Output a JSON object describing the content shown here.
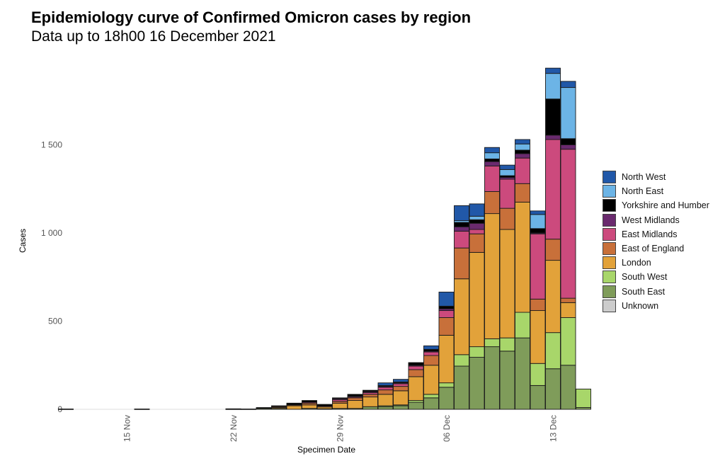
{
  "title": "Epidemiology curve of Confirmed Omicron cases by region",
  "subtitle": "Data up to 18h00 16 December 2021",
  "chart_data": {
    "type": "bar",
    "stacked": true,
    "title": "Epidemiology curve of Confirmed Omicron cases by region",
    "subtitle": "Data up to 18h00 16 December 2021",
    "xlabel": "Specimen Date",
    "ylabel": "Cases",
    "ylim": [
      0,
      1950
    ],
    "yticks": [
      0,
      500,
      1000,
      1500
    ],
    "ytick_labels": [
      "0",
      "500",
      "1 000",
      "1 500"
    ],
    "xticks": [
      "15 Nov",
      "22 Nov",
      "29 Nov",
      "06 Dec",
      "13 Dec"
    ],
    "grid": false,
    "legend_position": "right",
    "categories": [
      "11 Nov",
      "12 Nov",
      "13 Nov",
      "14 Nov",
      "15 Nov",
      "16 Nov",
      "17 Nov",
      "18 Nov",
      "19 Nov",
      "20 Nov",
      "21 Nov",
      "22 Nov",
      "23 Nov",
      "24 Nov",
      "25 Nov",
      "26 Nov",
      "27 Nov",
      "28 Nov",
      "29 Nov",
      "30 Nov",
      "01 Dec",
      "02 Dec",
      "03 Dec",
      "04 Dec",
      "05 Dec",
      "06 Dec",
      "07 Dec",
      "08 Dec",
      "09 Dec",
      "10 Dec",
      "11 Dec",
      "12 Dec",
      "13 Dec",
      "14 Dec",
      "15 Dec"
    ],
    "series": [
      {
        "name": "Unknown",
        "color": "#cccccc",
        "values": [
          0,
          0,
          0,
          0,
          0,
          0,
          0,
          0,
          0,
          0,
          0,
          0,
          0,
          0,
          0,
          0,
          0,
          0,
          0,
          0,
          0,
          0,
          0,
          0,
          0,
          0,
          0,
          0,
          0,
          0,
          0,
          0,
          0,
          0,
          0
        ]
      },
      {
        "name": "South East",
        "color": "#7f9c5a",
        "values": [
          2,
          0,
          0,
          0,
          0,
          2,
          0,
          0,
          0,
          0,
          0,
          2,
          2,
          5,
          5,
          0,
          5,
          3,
          5,
          5,
          15,
          15,
          20,
          40,
          65,
          125,
          245,
          295,
          355,
          330,
          405,
          135,
          230,
          250,
          10
        ]
      },
      {
        "name": "South West",
        "color": "#a8d66a",
        "values": [
          0,
          0,
          0,
          0,
          0,
          0,
          0,
          0,
          0,
          0,
          0,
          0,
          0,
          0,
          0,
          0,
          0,
          0,
          0,
          0,
          0,
          5,
          5,
          10,
          20,
          25,
          65,
          60,
          45,
          75,
          145,
          125,
          205,
          270,
          105
        ]
      },
      {
        "name": "London",
        "color": "#e2a23a",
        "values": [
          0,
          0,
          0,
          0,
          0,
          0,
          0,
          0,
          0,
          0,
          0,
          0,
          0,
          0,
          5,
          20,
          20,
          10,
          30,
          45,
          55,
          65,
          80,
          135,
          165,
          270,
          430,
          535,
          710,
          615,
          625,
          300,
          410,
          85,
          0
        ]
      },
      {
        "name": "East of England",
        "color": "#c8703a",
        "values": [
          0,
          0,
          0,
          0,
          0,
          0,
          0,
          0,
          0,
          0,
          0,
          0,
          0,
          0,
          5,
          5,
          10,
          5,
          10,
          15,
          15,
          25,
          25,
          40,
          55,
          100,
          175,
          105,
          125,
          120,
          105,
          65,
          120,
          25,
          0
        ]
      },
      {
        "name": "East Midlands",
        "color": "#cc4a7d",
        "values": [
          0,
          0,
          0,
          0,
          0,
          0,
          0,
          0,
          0,
          0,
          0,
          0,
          0,
          0,
          0,
          0,
          5,
          0,
          10,
          5,
          10,
          15,
          15,
          20,
          20,
          40,
          95,
          25,
          145,
          165,
          145,
          370,
          565,
          845,
          0
        ]
      },
      {
        "name": "West Midlands",
        "color": "#6a2a6e",
        "values": [
          0,
          0,
          0,
          0,
          0,
          0,
          0,
          0,
          0,
          0,
          0,
          0,
          0,
          0,
          0,
          0,
          0,
          0,
          5,
          5,
          5,
          5,
          5,
          5,
          5,
          10,
          25,
          35,
          25,
          10,
          25,
          5,
          25,
          25,
          0
        ]
      },
      {
        "name": "Yorkshire and Humber",
        "color": "#000000",
        "values": [
          0,
          0,
          0,
          0,
          0,
          0,
          0,
          0,
          0,
          0,
          0,
          1,
          0,
          5,
          5,
          10,
          10,
          10,
          5,
          10,
          8,
          5,
          5,
          15,
          10,
          15,
          25,
          20,
          15,
          10,
          20,
          25,
          205,
          35,
          0
        ]
      },
      {
        "name": "North East",
        "color": "#6cb4e6",
        "values": [
          0,
          0,
          0,
          0,
          0,
          0,
          0,
          0,
          0,
          0,
          0,
          0,
          0,
          0,
          0,
          0,
          0,
          0,
          0,
          0,
          0,
          0,
          0,
          0,
          0,
          0,
          10,
          20,
          35,
          35,
          35,
          80,
          145,
          290,
          0
        ]
      },
      {
        "name": "North West",
        "color": "#2158a8",
        "values": [
          0,
          0,
          0,
          0,
          0,
          0,
          0,
          0,
          0,
          0,
          0,
          0,
          0,
          0,
          0,
          0,
          0,
          0,
          0,
          0,
          0,
          15,
          15,
          0,
          20,
          80,
          85,
          70,
          30,
          25,
          25,
          20,
          30,
          35,
          0
        ]
      }
    ]
  },
  "legend": {
    "items": [
      {
        "label": "North West",
        "color": "#2158a8"
      },
      {
        "label": "North East",
        "color": "#6cb4e6"
      },
      {
        "label": "Yorkshire and Humber",
        "color": "#000000"
      },
      {
        "label": "West Midlands",
        "color": "#6a2a6e"
      },
      {
        "label": "East Midlands",
        "color": "#cc4a7d"
      },
      {
        "label": "East of England",
        "color": "#c8703a"
      },
      {
        "label": "London",
        "color": "#e2a23a"
      },
      {
        "label": "South West",
        "color": "#a8d66a"
      },
      {
        "label": "South East",
        "color": "#7f9c5a"
      },
      {
        "label": "Unknown",
        "color": "#cccccc"
      }
    ]
  }
}
